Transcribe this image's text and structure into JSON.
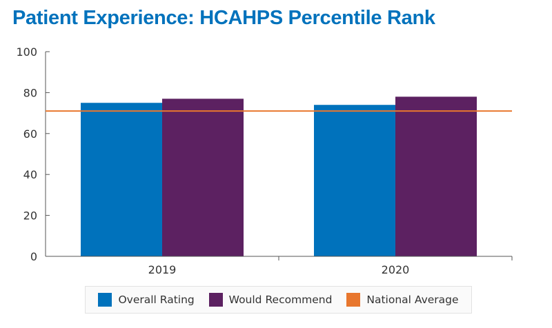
{
  "title": "Patient Experience: HCAHPS Percentile Rank",
  "colors": {
    "title": "#0072BC",
    "overall_rating": "#0072BC",
    "would_recommend": "#5C2161",
    "national_average": "#E8772E",
    "axis": "#555555"
  },
  "chart_data": {
    "type": "bar",
    "title": "Patient Experience: HCAHPS Percentile Rank",
    "categories": [
      "2019",
      "2020"
    ],
    "series": [
      {
        "name": "Overall Rating",
        "values": [
          75,
          74
        ]
      },
      {
        "name": "Would Recommend",
        "values": [
          77,
          78
        ]
      }
    ],
    "reference_line": {
      "name": "National Average",
      "value": 71
    },
    "ylim": [
      0,
      100
    ],
    "yticks": [
      "0",
      "20",
      "40",
      "60",
      "80",
      "100"
    ],
    "grid": false,
    "legend_placement": "bottom"
  },
  "legend": [
    {
      "label": "Overall Rating",
      "color": "#0072BC"
    },
    {
      "label": "Would Recommend",
      "color": "#5C2161"
    },
    {
      "label": "National Average",
      "color": "#E8772E"
    }
  ]
}
